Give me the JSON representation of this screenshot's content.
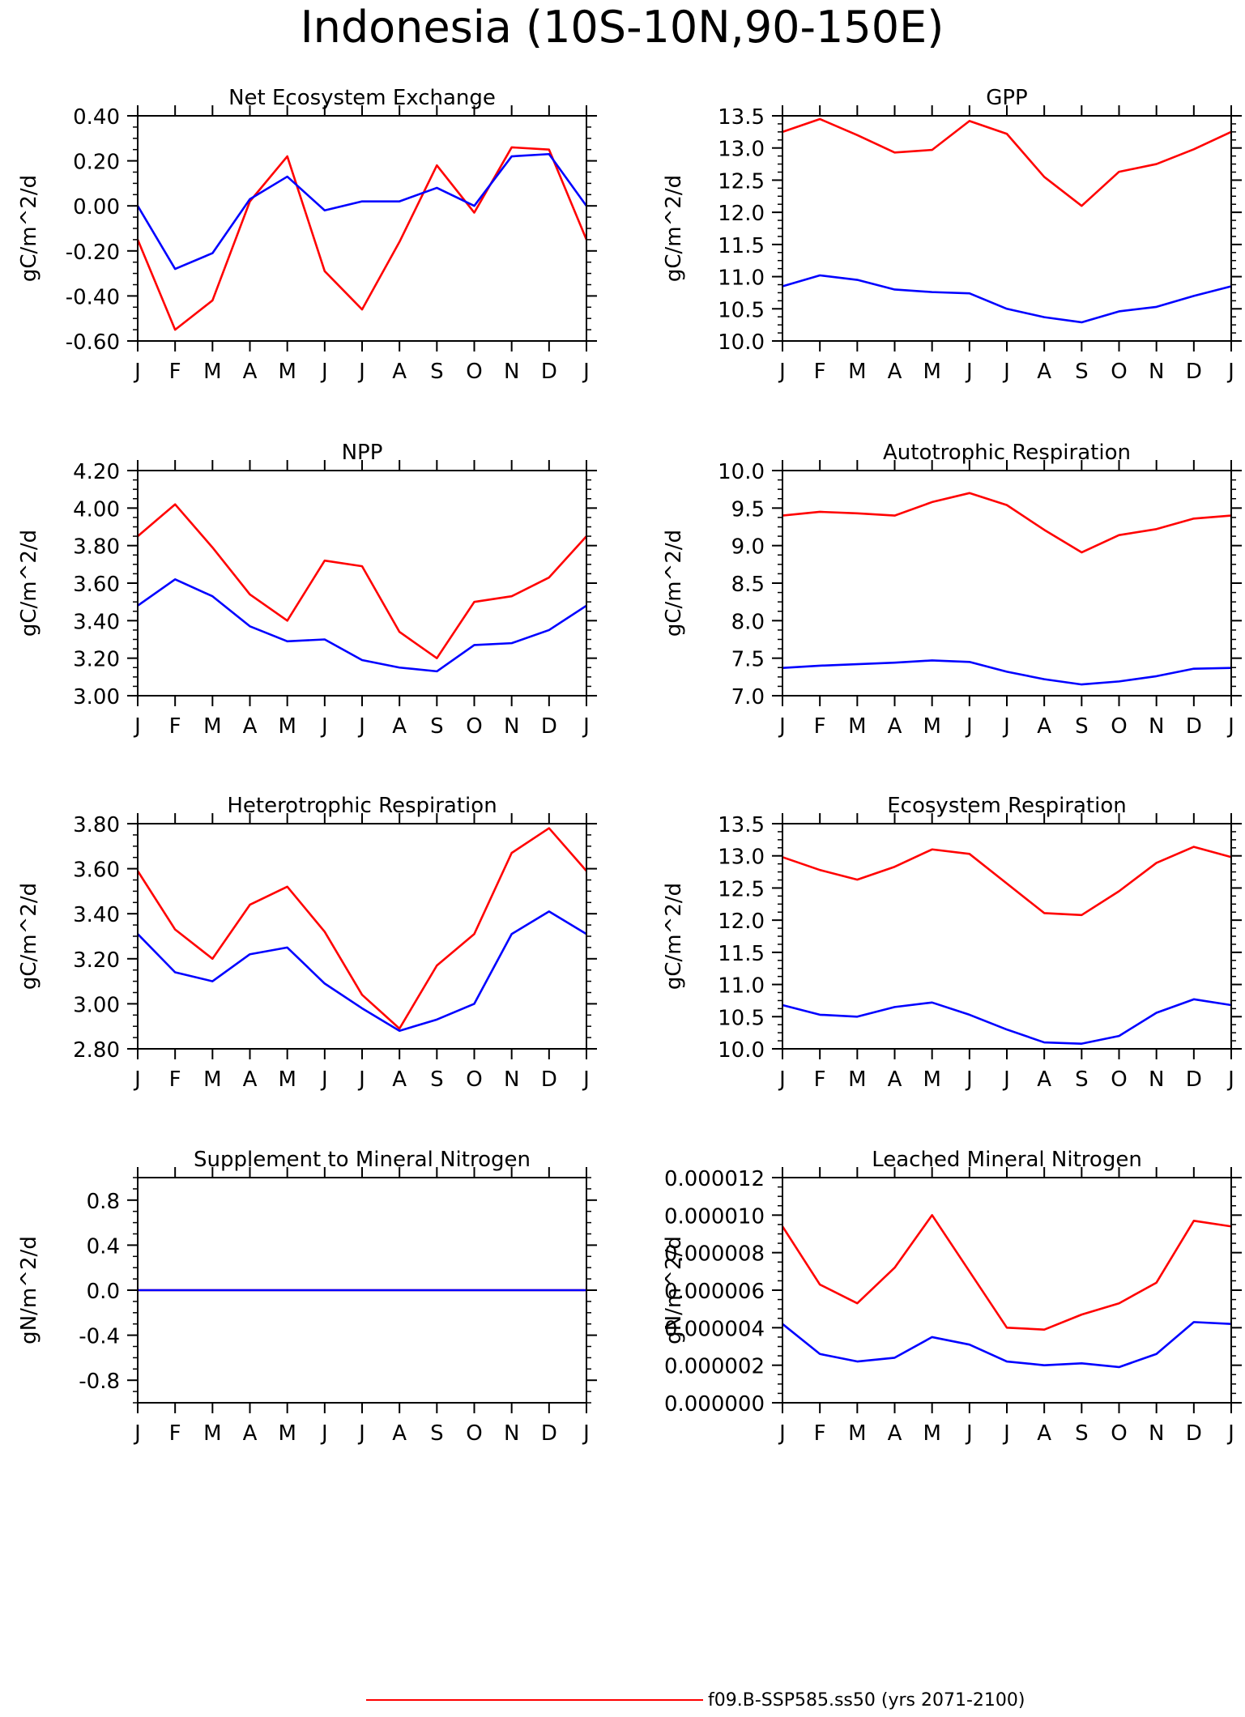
{
  "page_title": "Indonesia (10S-10N,90-150E)",
  "legend": [
    {
      "label": "f09.B-SSP585.ss50 (yrs 2071-2100)",
      "color": "#ff0000"
    }
  ],
  "colors": {
    "series_a": "#ff0000",
    "series_b": "#0000ff"
  },
  "chart_data": [
    {
      "type": "line",
      "title": "Net Ecosystem Exchange",
      "ylabel": "gC/m^2/d",
      "x": [
        "J",
        "F",
        "M",
        "A",
        "M",
        "J",
        "J",
        "A",
        "S",
        "O",
        "N",
        "D",
        "J"
      ],
      "ylim": [
        -0.6,
        0.4
      ],
      "yticks": [
        -0.6,
        -0.4,
        -0.2,
        0.0,
        0.2,
        0.4
      ],
      "yticklabels": [
        "-0.60",
        "-0.40",
        "-0.20",
        "0.00",
        "0.20",
        "0.40"
      ],
      "minor_step": 0.05,
      "series": [
        {
          "color": "#ff0000",
          "values": [
            -0.15,
            -0.55,
            -0.42,
            0.02,
            0.22,
            -0.29,
            -0.46,
            -0.16,
            0.18,
            -0.03,
            0.26,
            0.25,
            -0.15
          ]
        },
        {
          "color": "#0000ff",
          "values": [
            0.0,
            -0.28,
            -0.21,
            0.03,
            0.13,
            -0.02,
            0.02,
            0.02,
            0.08,
            0.0,
            0.22,
            0.23,
            0.0
          ]
        }
      ]
    },
    {
      "type": "line",
      "title": "GPP",
      "ylabel": "gC/m^2/d",
      "x": [
        "J",
        "F",
        "M",
        "A",
        "M",
        "J",
        "J",
        "A",
        "S",
        "O",
        "N",
        "D",
        "J"
      ],
      "ylim": [
        10.0,
        13.5
      ],
      "yticks": [
        10.0,
        10.5,
        11.0,
        11.5,
        12.0,
        12.5,
        13.0,
        13.5
      ],
      "yticklabels": [
        "10.0",
        "10.5",
        "11.0",
        "11.5",
        "12.0",
        "12.5",
        "13.0",
        "13.5"
      ],
      "minor_step": 0.125,
      "series": [
        {
          "color": "#ff0000",
          "values": [
            13.25,
            13.45,
            13.2,
            12.93,
            12.97,
            13.42,
            13.22,
            12.55,
            12.1,
            12.63,
            12.75,
            12.98,
            13.25
          ]
        },
        {
          "color": "#0000ff",
          "values": [
            10.85,
            11.02,
            10.95,
            10.8,
            10.76,
            10.74,
            10.5,
            10.37,
            10.29,
            10.46,
            10.53,
            10.7,
            10.85
          ]
        }
      ]
    },
    {
      "type": "line",
      "title": "NPP",
      "ylabel": "gC/m^2/d",
      "x": [
        "J",
        "F",
        "M",
        "A",
        "M",
        "J",
        "J",
        "A",
        "S",
        "O",
        "N",
        "D",
        "J"
      ],
      "ylim": [
        3.0,
        4.2
      ],
      "yticks": [
        3.0,
        3.2,
        3.4,
        3.6,
        3.8,
        4.0,
        4.2
      ],
      "yticklabels": [
        "3.00",
        "3.20",
        "3.40",
        "3.60",
        "3.80",
        "4.00",
        "4.20"
      ],
      "minor_step": 0.05,
      "series": [
        {
          "color": "#ff0000",
          "values": [
            3.85,
            4.02,
            3.79,
            3.54,
            3.4,
            3.72,
            3.69,
            3.34,
            3.2,
            3.5,
            3.53,
            3.63,
            3.85
          ]
        },
        {
          "color": "#0000ff",
          "values": [
            3.48,
            3.62,
            3.53,
            3.37,
            3.29,
            3.3,
            3.19,
            3.15,
            3.13,
            3.27,
            3.28,
            3.35,
            3.48
          ]
        }
      ]
    },
    {
      "type": "line",
      "title": "Autotrophic Respiration",
      "ylabel": "gC/m^2/d",
      "x": [
        "J",
        "F",
        "M",
        "A",
        "M",
        "J",
        "J",
        "A",
        "S",
        "O",
        "N",
        "D",
        "J"
      ],
      "ylim": [
        7.0,
        10.0
      ],
      "yticks": [
        7.0,
        7.5,
        8.0,
        8.5,
        9.0,
        9.5,
        10.0
      ],
      "yticklabels": [
        "7.0",
        "7.5",
        "8.0",
        "8.5",
        "9.0",
        "9.5",
        "10.0"
      ],
      "minor_step": 0.125,
      "series": [
        {
          "color": "#ff0000",
          "values": [
            9.4,
            9.45,
            9.43,
            9.4,
            9.58,
            9.7,
            9.54,
            9.21,
            8.91,
            9.14,
            9.22,
            9.36,
            9.4
          ]
        },
        {
          "color": "#0000ff",
          "values": [
            7.37,
            7.4,
            7.42,
            7.44,
            7.47,
            7.45,
            7.32,
            7.22,
            7.15,
            7.19,
            7.26,
            7.36,
            7.37
          ]
        }
      ]
    },
    {
      "type": "line",
      "title": "Heterotrophic Respiration",
      "ylabel": "gC/m^2/d",
      "x": [
        "J",
        "F",
        "M",
        "A",
        "M",
        "J",
        "J",
        "A",
        "S",
        "O",
        "N",
        "D",
        "J"
      ],
      "ylim": [
        2.8,
        3.8
      ],
      "yticks": [
        2.8,
        3.0,
        3.2,
        3.4,
        3.6,
        3.8
      ],
      "yticklabels": [
        "2.80",
        "3.00",
        "3.20",
        "3.40",
        "3.60",
        "3.80"
      ],
      "minor_step": 0.05,
      "series": [
        {
          "color": "#ff0000",
          "values": [
            3.59,
            3.33,
            3.2,
            3.44,
            3.52,
            3.32,
            3.04,
            2.89,
            3.17,
            3.31,
            3.67,
            3.78,
            3.59
          ]
        },
        {
          "color": "#0000ff",
          "values": [
            3.31,
            3.14,
            3.1,
            3.22,
            3.25,
            3.09,
            2.98,
            2.88,
            2.93,
            3.0,
            3.31,
            3.41,
            3.31
          ]
        }
      ]
    },
    {
      "type": "line",
      "title": "Ecosystem Respiration",
      "ylabel": "gC/m^2/d",
      "x": [
        "J",
        "F",
        "M",
        "A",
        "M",
        "J",
        "J",
        "A",
        "S",
        "O",
        "N",
        "D",
        "J"
      ],
      "ylim": [
        10.0,
        13.5
      ],
      "yticks": [
        10.0,
        10.5,
        11.0,
        11.5,
        12.0,
        12.5,
        13.0,
        13.5
      ],
      "yticklabels": [
        "10.0",
        "10.5",
        "11.0",
        "11.5",
        "12.0",
        "12.5",
        "13.0",
        "13.5"
      ],
      "minor_step": 0.125,
      "series": [
        {
          "color": "#ff0000",
          "values": [
            12.98,
            12.78,
            12.63,
            12.83,
            13.1,
            13.03,
            12.57,
            12.11,
            12.08,
            12.45,
            12.89,
            13.14,
            12.98
          ]
        },
        {
          "color": "#0000ff",
          "values": [
            10.68,
            10.53,
            10.5,
            10.65,
            10.72,
            10.53,
            10.3,
            10.1,
            10.08,
            10.2,
            10.56,
            10.77,
            10.68
          ]
        }
      ]
    },
    {
      "type": "line",
      "title": "Supplement to Mineral Nitrogen",
      "ylabel": "gN/m^2/d",
      "x": [
        "J",
        "F",
        "M",
        "A",
        "M",
        "J",
        "J",
        "A",
        "S",
        "O",
        "N",
        "D",
        "J"
      ],
      "ylim": [
        -1.0,
        1.0
      ],
      "yticks": [
        -0.8,
        -0.4,
        0.0,
        0.4,
        0.8
      ],
      "yticklabels": [
        "-0.8",
        "-0.4",
        "0.0",
        "0.4",
        "0.8"
      ],
      "minor_step": 0.1,
      "series": [
        {
          "color": "#ff0000",
          "values": [
            0,
            0,
            0,
            0,
            0,
            0,
            0,
            0,
            0,
            0,
            0,
            0,
            0
          ]
        },
        {
          "color": "#0000ff",
          "values": [
            0,
            0,
            0,
            0,
            0,
            0,
            0,
            0,
            0,
            0,
            0,
            0,
            0
          ]
        }
      ]
    },
    {
      "type": "line",
      "title": "Leached Mineral Nitrogen",
      "ylabel": "gN/m^2/d",
      "x": [
        "J",
        "F",
        "M",
        "A",
        "M",
        "J",
        "J",
        "A",
        "S",
        "O",
        "N",
        "D",
        "J"
      ],
      "ylim": [
        0.0,
        1.2e-05
      ],
      "yticks": [
        0.0,
        2e-06,
        4e-06,
        6e-06,
        8e-06,
        1e-05,
        1.2e-05
      ],
      "yticklabels": [
        "0.000000",
        "0.000002",
        "0.000004",
        "0.000006",
        "0.000008",
        "0.000010",
        "0.000012"
      ],
      "minor_step": 5e-07,
      "series": [
        {
          "color": "#ff0000",
          "values": [
            9.4e-06,
            6.3e-06,
            5.3e-06,
            7.2e-06,
            1e-05,
            7e-06,
            4e-06,
            3.9e-06,
            4.7e-06,
            5.3e-06,
            6.4e-06,
            9.7e-06,
            9.4e-06
          ]
        },
        {
          "color": "#0000ff",
          "values": [
            4.2e-06,
            2.6e-06,
            2.2e-06,
            2.4e-06,
            3.5e-06,
            3.1e-06,
            2.2e-06,
            2e-06,
            2.1e-06,
            1.9e-06,
            2.6e-06,
            4.3e-06,
            4.2e-06
          ]
        }
      ]
    }
  ]
}
